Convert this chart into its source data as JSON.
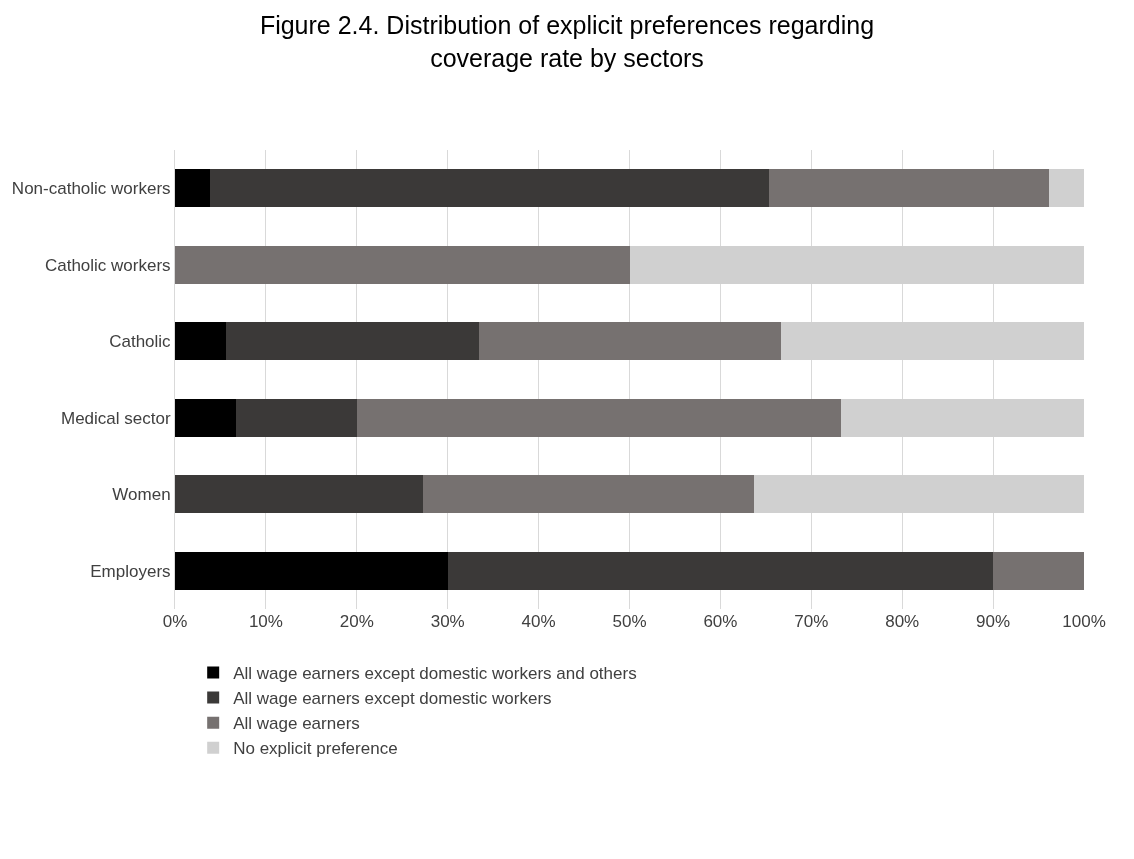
{
  "chart_data": {
    "type": "bar",
    "orientation": "horizontal",
    "stacked": true,
    "title": "Figure 2.4. Distribution of explicit preferences regarding coverage rate by sectors",
    "categories": [
      "Non-catholic workers",
      "Catholic workers",
      "Catholic",
      "Medical sector",
      "Women",
      "Employers"
    ],
    "series": [
      {
        "name": "All wage earners except domestic workers and others",
        "color": "#000000",
        "values": [
          3.8,
          0,
          5.6,
          6.7,
          0,
          30
        ]
      },
      {
        "name": "All wage earners except domestic workers",
        "color": "#3b3938",
        "values": [
          61.5,
          0,
          27.8,
          13.3,
          27.3,
          60
        ]
      },
      {
        "name": "All wage earners",
        "color": "#767170",
        "values": [
          30.8,
          50,
          33.3,
          53.3,
          36.4,
          10
        ]
      },
      {
        "name": "No explicit preference",
        "color": "#d0d0d0",
        "values": [
          3.9,
          50,
          33.3,
          26.7,
          36.3,
          0
        ]
      }
    ],
    "xlim": [
      0,
      100
    ],
    "xticks": [
      {
        "value": 0,
        "label": "0%"
      },
      {
        "value": 10,
        "label": "10%"
      },
      {
        "value": 20,
        "label": "20%"
      },
      {
        "value": 30,
        "label": "30%"
      },
      {
        "value": 40,
        "label": "40%"
      },
      {
        "value": 50,
        "label": "50%"
      },
      {
        "value": 60,
        "label": "60%"
      },
      {
        "value": 70,
        "label": "70%"
      },
      {
        "value": 80,
        "label": "80%"
      },
      {
        "value": 90,
        "label": "90%"
      },
      {
        "value": 100,
        "label": "100%"
      }
    ],
    "grid": "x",
    "legend": "bottom"
  }
}
